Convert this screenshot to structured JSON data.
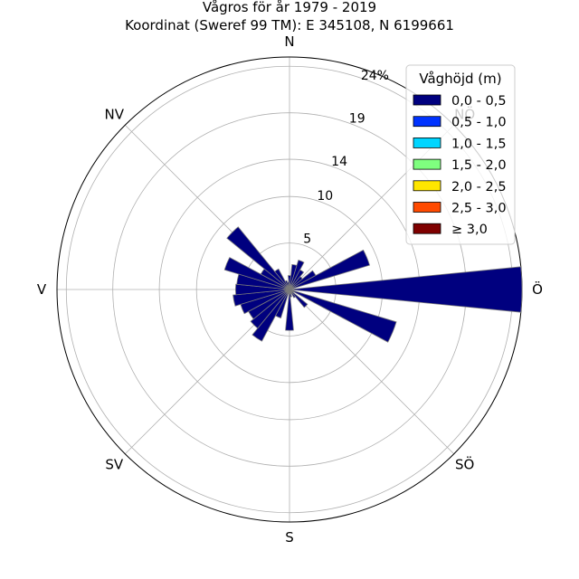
{
  "chart_data": {
    "type": "windrose",
    "title": "Vågros för år 1979 - 2019",
    "subtitle": "Koordinat (Sweref 99 TM): E 345108, N 6199661",
    "directions": [
      "N",
      "NÖ",
      "Ö",
      "SÖ",
      "S",
      "SV",
      "V",
      "NV"
    ],
    "radial_ticks": [
      {
        "value": 5,
        "label": "5"
      },
      {
        "value": 10,
        "label": "10"
      },
      {
        "value": 14,
        "label": "14"
      },
      {
        "value": 19,
        "label": "19"
      },
      {
        "value": 24,
        "label": "24%"
      }
    ],
    "r_max": 25,
    "sector_width_deg": 11.25,
    "grid": true,
    "legend": {
      "title": "Våghöjd (m)",
      "placement": "top-right",
      "entries": [
        {
          "label": "0,0 - 0,5",
          "color": "#00007f"
        },
        {
          "label": "0,5 - 1,0",
          "color": "#0033ff"
        },
        {
          "label": "1,0 - 1,5",
          "color": "#00d5ff"
        },
        {
          "label": "1,5 - 2,0",
          "color": "#7fff7f"
        },
        {
          "label": "2,0 - 2,5",
          "color": "#ffe600"
        },
        {
          "label": "2,5 - 3,0",
          "color": "#ff4a00"
        },
        {
          "label": "≥ 3,0",
          "color": "#7f0000"
        }
      ]
    },
    "series": [
      {
        "name": "0,0 - 0,5",
        "direction_deg": [
          0,
          11.25,
          22.5,
          33.75,
          45,
          56.25,
          67.5,
          78.75,
          90,
          101.25,
          112.5,
          123.75,
          135,
          146.25,
          157.5,
          168.75,
          180,
          191.25,
          202.5,
          213.75,
          225,
          236.25,
          247.5,
          258.75,
          270,
          281.25,
          292.5,
          303.75,
          315,
          326.25,
          337.5,
          348.75
        ],
        "values": [
          1.5,
          2.7,
          3.3,
          2.4,
          1.8,
          3.2,
          9.0,
          0.3,
          25.0,
          0.3,
          12.0,
          0.5,
          2.5,
          1.0,
          0.5,
          0.8,
          4.4,
          0.4,
          3.2,
          6.3,
          5.4,
          5.0,
          5.5,
          6.1,
          5.8,
          5.7,
          7.3,
          3.5,
          8.7,
          2.5,
          1.0,
          0.8
        ]
      }
    ]
  }
}
